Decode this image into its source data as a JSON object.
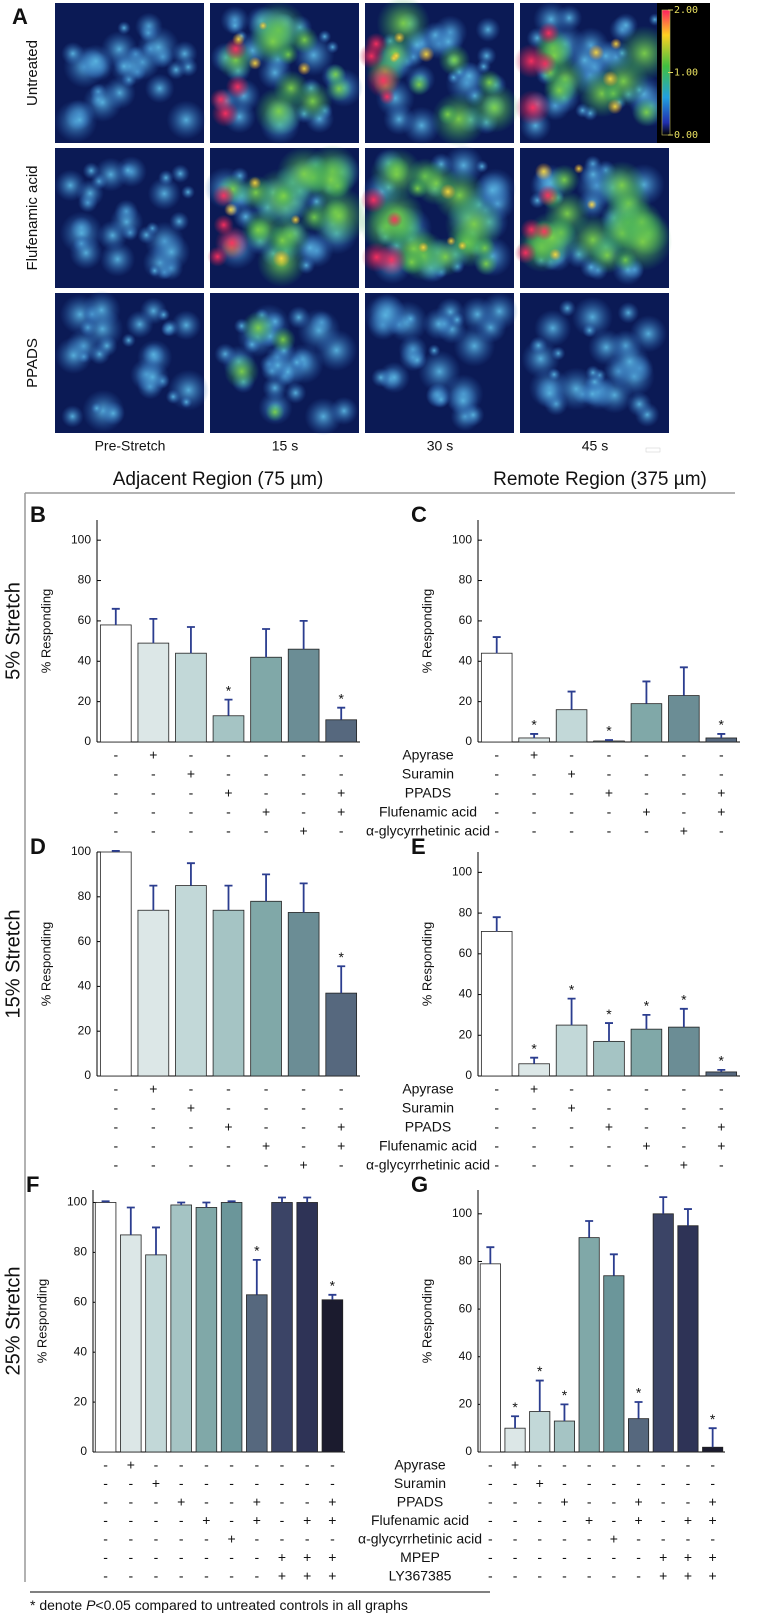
{
  "panel_a": {
    "label": "A",
    "rows": [
      "Untreated",
      "Flufenamic acid",
      "PPADS"
    ],
    "columns": [
      "Pre-Stretch",
      "15 s",
      "30 s",
      "45 s"
    ],
    "colorbar": {
      "lim": [
        0,
        2
      ],
      "ticks": [
        {
          "value": 2,
          "label": "2.00"
        },
        {
          "value": 1,
          "label": "1.00"
        },
        {
          "value": 0,
          "label": "0.00"
        }
      ]
    }
  },
  "region_headers": [
    "Adjacent Region (75 µm)",
    "Remote Region (375 µm)"
  ],
  "stretch_rows": [
    {
      "label": "5% Stretch",
      "treatments": [
        "Apyrase",
        "Suramin",
        "PPADS",
        "Flufenamic acid",
        "α-glycyrrhetinic acid"
      ]
    },
    {
      "label": "15% Stretch",
      "treatments": [
        "Apyrase",
        "Suramin",
        "PPADS",
        "Flufenamic acid",
        "α-glycyrrhetinic acid"
      ]
    },
    {
      "label": "25% Stretch",
      "treatments": [
        "Apyrase",
        "Suramin",
        "PPADS",
        "Flufenamic acid",
        "α-glycyrrhetinic acid",
        "MPEP",
        "LY367385"
      ]
    }
  ],
  "chart_data": [
    {
      "type": "bar",
      "panel": "B",
      "ylabel": "% Responding",
      "ylim": [
        0,
        110
      ],
      "yticks": [
        0,
        20,
        40,
        60,
        80,
        100
      ],
      "values": [
        58,
        49,
        44,
        13,
        42,
        46,
        11
      ],
      "errors": [
        8,
        12,
        13,
        8,
        14,
        14,
        6
      ],
      "stars": [
        null,
        null,
        null,
        "*",
        null,
        null,
        "*"
      ],
      "colors": [
        "#ffffff",
        "#dce7e7",
        "#c2d8d8",
        "#a5c4c4",
        "#80a8a8",
        "#6b8d95",
        "#56687e"
      ],
      "signs": [
        [
          "-",
          "+",
          "-",
          "-",
          "-",
          "-",
          "-"
        ],
        [
          "-",
          "-",
          "+",
          "-",
          "-",
          "-",
          "-"
        ],
        [
          "-",
          "-",
          "-",
          "+",
          "-",
          "-",
          "+"
        ],
        [
          "-",
          "-",
          "-",
          "-",
          "+",
          "-",
          "+"
        ],
        [
          "-",
          "-",
          "-",
          "-",
          "-",
          "+",
          "-"
        ]
      ]
    },
    {
      "type": "bar",
      "panel": "C",
      "ylabel": "% Responding",
      "ylim": [
        0,
        110
      ],
      "yticks": [
        0,
        20,
        40,
        60,
        80,
        100
      ],
      "values": [
        44,
        2,
        16,
        0.5,
        19,
        23,
        2
      ],
      "errors": [
        8,
        2,
        9,
        0.5,
        11,
        14,
        2
      ],
      "stars": [
        null,
        "*",
        null,
        "*",
        null,
        null,
        "*"
      ],
      "colors": [
        "#ffffff",
        "#dce7e7",
        "#c2d8d8",
        "#a5c4c4",
        "#80a8a8",
        "#6b8d95",
        "#56687e"
      ],
      "signs": [
        [
          "-",
          "+",
          "-",
          "-",
          "-",
          "-",
          "-"
        ],
        [
          "-",
          "-",
          "+",
          "-",
          "-",
          "-",
          "-"
        ],
        [
          "-",
          "-",
          "-",
          "+",
          "-",
          "-",
          "+"
        ],
        [
          "-",
          "-",
          "-",
          "-",
          "+",
          "-",
          "+"
        ],
        [
          "-",
          "-",
          "-",
          "-",
          "-",
          "+",
          "-"
        ]
      ]
    },
    {
      "type": "bar",
      "panel": "D",
      "ylabel": "% Responding",
      "ylim": [
        0,
        100
      ],
      "yticks": [
        0,
        20,
        40,
        60,
        80,
        100
      ],
      "values": [
        100,
        74,
        85,
        74,
        78,
        73,
        37
      ],
      "errors": [
        0.5,
        11,
        10,
        11,
        12,
        13,
        12
      ],
      "stars": [
        null,
        null,
        null,
        null,
        null,
        null,
        "*"
      ],
      "colors": [
        "#ffffff",
        "#dce7e7",
        "#c2d8d8",
        "#a5c4c4",
        "#80a8a8",
        "#6b8d95",
        "#56687e"
      ],
      "signs": [
        [
          "-",
          "+",
          "-",
          "-",
          "-",
          "-",
          "-"
        ],
        [
          "-",
          "-",
          "+",
          "-",
          "-",
          "-",
          "-"
        ],
        [
          "-",
          "-",
          "-",
          "+",
          "-",
          "-",
          "+"
        ],
        [
          "-",
          "-",
          "-",
          "-",
          "+",
          "-",
          "+"
        ],
        [
          "-",
          "-",
          "-",
          "-",
          "-",
          "+",
          "-"
        ]
      ]
    },
    {
      "type": "bar",
      "panel": "E",
      "ylabel": "% Responding",
      "ylim": [
        0,
        110
      ],
      "yticks": [
        0,
        20,
        40,
        60,
        80,
        100
      ],
      "values": [
        71,
        6,
        25,
        17,
        23,
        24,
        2
      ],
      "errors": [
        7,
        3,
        13,
        9,
        7,
        9,
        1
      ],
      "stars": [
        null,
        "*",
        "*",
        "*",
        "*",
        "*",
        "*"
      ],
      "colors": [
        "#ffffff",
        "#dce7e7",
        "#c2d8d8",
        "#a5c4c4",
        "#80a8a8",
        "#6b8d95",
        "#56687e"
      ],
      "signs": [
        [
          "-",
          "+",
          "-",
          "-",
          "-",
          "-",
          "-"
        ],
        [
          "-",
          "-",
          "+",
          "-",
          "-",
          "-",
          "-"
        ],
        [
          "-",
          "-",
          "-",
          "+",
          "-",
          "-",
          "+"
        ],
        [
          "-",
          "-",
          "-",
          "-",
          "+",
          "-",
          "+"
        ],
        [
          "-",
          "-",
          "-",
          "-",
          "-",
          "+",
          "-"
        ]
      ]
    },
    {
      "type": "bar",
      "panel": "F",
      "ylabel": "% Responding",
      "ylim": [
        0,
        105
      ],
      "yticks": [
        0,
        20,
        40,
        60,
        80,
        100
      ],
      "values": [
        100,
        87,
        79,
        99,
        98,
        100,
        63,
        100,
        100,
        61
      ],
      "errors": [
        0.5,
        11,
        11,
        1,
        2,
        0.5,
        14,
        2,
        2,
        2
      ],
      "stars": [
        null,
        null,
        null,
        null,
        null,
        null,
        "*",
        null,
        null,
        "*"
      ],
      "colors": [
        "#ffffff",
        "#dce7e7",
        "#c2d8d8",
        "#a5c4c4",
        "#80a8a8",
        "#6b969a",
        "#56687e",
        "#3b4466",
        "#2e3356",
        "#1b1b2e"
      ],
      "signs": [
        [
          "-",
          "+",
          "-",
          "-",
          "-",
          "-",
          "-",
          "-",
          "-",
          "-"
        ],
        [
          "-",
          "-",
          "+",
          "-",
          "-",
          "-",
          "-",
          "-",
          "-",
          "-"
        ],
        [
          "-",
          "-",
          "-",
          "+",
          "-",
          "-",
          "+",
          "-",
          "-",
          "+"
        ],
        [
          "-",
          "-",
          "-",
          "-",
          "+",
          "-",
          "+",
          "-",
          "+",
          "+"
        ],
        [
          "-",
          "-",
          "-",
          "-",
          "-",
          "+",
          "-",
          "-",
          "-",
          "-"
        ],
        [
          "-",
          "-",
          "-",
          "-",
          "-",
          "-",
          "-",
          "+",
          "+",
          "+"
        ],
        [
          "-",
          "-",
          "-",
          "-",
          "-",
          "-",
          "-",
          "+",
          "+",
          "+"
        ]
      ]
    },
    {
      "type": "bar",
      "panel": "G",
      "ylabel": "% Responding",
      "ylim": [
        0,
        110
      ],
      "yticks": [
        0,
        20,
        40,
        60,
        80,
        100
      ],
      "values": [
        79,
        10,
        17,
        13,
        90,
        74,
        14,
        100,
        95,
        2
      ],
      "errors": [
        7,
        5,
        13,
        7,
        7,
        9,
        7,
        7,
        7,
        8
      ],
      "stars": [
        null,
        "*",
        "*",
        "*",
        null,
        null,
        "*",
        null,
        null,
        "*"
      ],
      "colors": [
        "#ffffff",
        "#dce7e7",
        "#c2d8d8",
        "#a5c4c4",
        "#80a8a8",
        "#6b969a",
        "#56687e",
        "#3b4466",
        "#2e3356",
        "#1b1b2e"
      ],
      "signs": [
        [
          "-",
          "+",
          "-",
          "-",
          "-",
          "-",
          "-",
          "-",
          "-",
          "-"
        ],
        [
          "-",
          "-",
          "+",
          "-",
          "-",
          "-",
          "-",
          "-",
          "-",
          "-"
        ],
        [
          "-",
          "-",
          "-",
          "+",
          "-",
          "-",
          "+",
          "-",
          "-",
          "+"
        ],
        [
          "-",
          "-",
          "-",
          "-",
          "+",
          "-",
          "+",
          "-",
          "+",
          "+"
        ],
        [
          "-",
          "-",
          "-",
          "-",
          "-",
          "+",
          "-",
          "-",
          "-",
          "-"
        ],
        [
          "-",
          "-",
          "-",
          "-",
          "-",
          "-",
          "-",
          "+",
          "+",
          "+"
        ],
        [
          "-",
          "-",
          "-",
          "-",
          "-",
          "-",
          "-",
          "+",
          "+",
          "+"
        ]
      ]
    }
  ],
  "footnote": [
    "* denote ",
    "P",
    "<0.05 compared to untreated controls in all graphs"
  ]
}
